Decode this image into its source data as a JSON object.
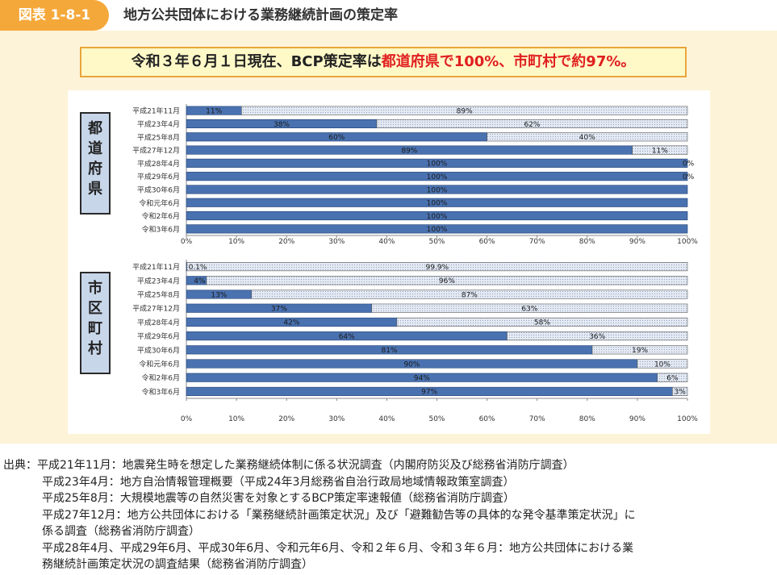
{
  "header": {
    "badge": "図表 1-8-1",
    "title": "地方公共団体における業務継続計画の策定率"
  },
  "headline": {
    "prefix": "令和３年６月１日現在、BCP策定率は",
    "highlight": "都道府県で100%、市町村で約97%。"
  },
  "colors": {
    "badge": "#f5a83a",
    "panel": "#fdf3d8",
    "headline_border": "#e8a63a",
    "highlight_text": "#e02020",
    "bar_done": "#4a72b0",
    "bar_rest": "#e4e9f2",
    "side_box": "#c8d6ea"
  },
  "chart_data": [
    {
      "type": "bar",
      "orientation": "horizontal",
      "stacked": true,
      "group_label": [
        "都",
        "道",
        "府",
        "県"
      ],
      "categories": [
        "平成21年11月",
        "平成23年4月",
        "平成25年8月",
        "平成27年12月",
        "平成28年4月",
        "平成29年6月",
        "平成30年6月",
        "令和元年6月",
        "令和2年6月",
        "令和3年6月"
      ],
      "series": [
        {
          "values": [
            11,
            38,
            60,
            89,
            100,
            100,
            100,
            100,
            100,
            100
          ],
          "labels": [
            "11%",
            "38%",
            "60%",
            "89%",
            "100%",
            "100%",
            "100%",
            "100%",
            "100%",
            "100%"
          ]
        },
        {
          "values": [
            89,
            62,
            40,
            11,
            0,
            0,
            0,
            0,
            0,
            0
          ],
          "labels": [
            "89%",
            "62%",
            "40%",
            "11%",
            "0%",
            "0%",
            "",
            "",
            "",
            ""
          ]
        }
      ],
      "xlim": [
        0,
        100
      ],
      "xticks": [
        "0%",
        "10%",
        "20%",
        "30%",
        "40%",
        "50%",
        "60%",
        "70%",
        "80%",
        "90%",
        "100%"
      ]
    },
    {
      "type": "bar",
      "orientation": "horizontal",
      "stacked": true,
      "group_label": [
        "市",
        "区",
        "町",
        "村"
      ],
      "categories": [
        "平成21年11月",
        "平成23年4月",
        "平成25年8月",
        "平成27年12月",
        "平成28年4月",
        "平成29年6月",
        "平成30年6月",
        "令和元年6月",
        "令和2年6月",
        "令和3年6月"
      ],
      "series": [
        {
          "values": [
            0.1,
            4,
            13,
            37,
            42,
            64,
            81,
            90,
            94,
            97
          ],
          "labels": [
            "0.1%",
            "4%",
            "13%",
            "37%",
            "42%",
            "64%",
            "81%",
            "90%",
            "94%",
            "97%"
          ]
        },
        {
          "values": [
            99.9,
            96,
            87,
            63,
            58,
            36,
            19,
            10,
            6,
            3
          ],
          "labels": [
            "99.9%",
            "96%",
            "87%",
            "63%",
            "58%",
            "36%",
            "19%",
            "10%",
            "6%",
            "3%"
          ]
        }
      ],
      "xlim": [
        0,
        100
      ],
      "xticks": [
        "0%",
        "10%",
        "20%",
        "30%",
        "40%",
        "50%",
        "60%",
        "70%",
        "80%",
        "90%",
        "100%"
      ]
    }
  ],
  "source": {
    "lines": [
      "出典：平成21年11月：地震発生時を想定した業務継続体制に係る状況調査（内閣府防災及び総務省消防庁調査）",
      "平成23年4月：地方自治情報管理概要（平成24年3月総務省自治行政局地域情報政策室調査）",
      "平成25年8月：大規模地震等の自然災害を対象とするBCP策定率速報値（総務省消防庁調査）",
      "平成27年12月：地方公共団体における「業務継続計画策定状況」及び「避難勧告等の具体的な発令基準策定状況」に",
      "係る調査（総務省消防庁調査）",
      "平成28年4月、平成29年6月、平成30年6月、令和元年6月、令和２年６月、令和３年６月：地方公共団体における業",
      "務継続計画策定状況の調査結果（総務省消防庁調査）"
    ]
  }
}
